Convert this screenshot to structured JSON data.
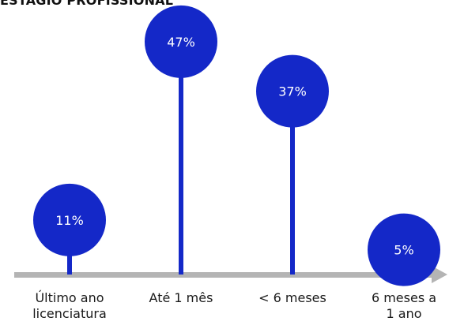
{
  "title": "ESTÁGIO PROFISSIONAL",
  "colors": {
    "accent": "#1428c8",
    "axis": "#b4b4b4",
    "label_text": "#ffffff"
  },
  "chart_data": {
    "type": "lollipop",
    "title": "ESTÁGIO PROFISSIONAL",
    "categories": [
      [
        "Último ano",
        "licenciatura"
      ],
      [
        "Até 1 mês"
      ],
      [
        "< 6 meses"
      ],
      [
        "6 meses a",
        "1 ano"
      ]
    ],
    "values": [
      11,
      47,
      37,
      5
    ],
    "value_labels": [
      "11%",
      "47%",
      "37%",
      "5%"
    ],
    "ylim": [
      0,
      50
    ],
    "legend": "none",
    "grid": false
  }
}
